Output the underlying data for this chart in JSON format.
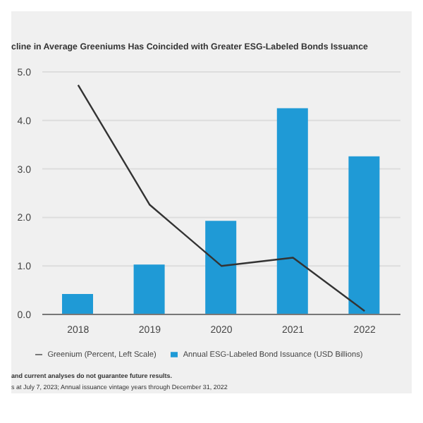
{
  "chart_data": {
    "type": "bar",
    "title": "cline in Average Greeniums Has Coincided with Greater ESG-Labeled Bonds Issuance",
    "categories": [
      "2018",
      "2019",
      "2020",
      "2021",
      "2022"
    ],
    "series": [
      {
        "name": "Greenium (Percent, Left Scale)",
        "type": "line",
        "color": "#333333",
        "values": [
          4.73,
          2.26,
          1.0,
          1.17,
          0.07
        ]
      },
      {
        "name": "Annual ESG-Labeled Bond Issuance (USD Billions)",
        "color": "#1f9ad6",
        "values": [
          0.42,
          1.03,
          1.93,
          4.25,
          3.26
        ]
      }
    ],
    "ylim": [
      0,
      5
    ],
    "yticks": [
      {
        "value": 0,
        "label": "0.0"
      },
      {
        "value": 1,
        "label": "1.0"
      },
      {
        "value": 2,
        "label": "2.0"
      },
      {
        "value": 3,
        "label": "3.0"
      },
      {
        "value": 4,
        "label": "4.0"
      },
      {
        "value": 5,
        "label": "5.0"
      }
    ],
    "grid": "y",
    "legend": "bottom",
    "marker": "none",
    "annotations": [
      "and current analyses do not guarantee future results.",
      "s at July 7, 2023; Annual issuance vintage years through December 31, 2022"
    ]
  }
}
